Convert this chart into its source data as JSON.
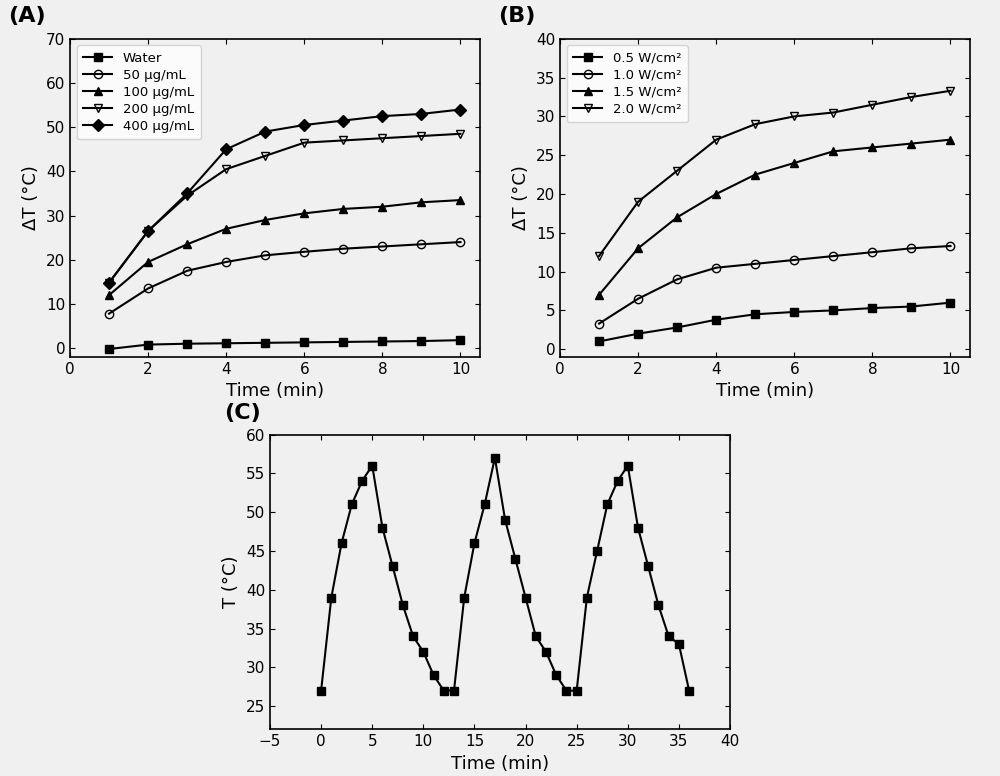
{
  "panel_A": {
    "xlabel": "Time (min)",
    "ylabel": "ΔT (°C)",
    "xlim": [
      0,
      10.5
    ],
    "ylim": [
      -2,
      70
    ],
    "xticks": [
      0,
      2,
      4,
      6,
      8,
      10
    ],
    "yticks": [
      0,
      10,
      20,
      30,
      40,
      50,
      60,
      70
    ],
    "time": [
      1,
      2,
      3,
      4,
      5,
      6,
      7,
      8,
      9,
      10
    ],
    "series": [
      {
        "label": "Water",
        "marker": "s",
        "fillstyle": "full",
        "values": [
          -0.2,
          0.8,
          1.0,
          1.1,
          1.2,
          1.3,
          1.4,
          1.5,
          1.6,
          1.8
        ]
      },
      {
        "label": "50 μg/mL",
        "marker": "o",
        "fillstyle": "none",
        "values": [
          7.8,
          13.5,
          17.5,
          19.5,
          21.0,
          21.8,
          22.5,
          23.0,
          23.5,
          24.0
        ]
      },
      {
        "label": "100 μg/mL",
        "marker": "^",
        "fillstyle": "full",
        "values": [
          12.0,
          19.5,
          23.5,
          27.0,
          29.0,
          30.5,
          31.5,
          32.0,
          33.0,
          33.5
        ]
      },
      {
        "label": "200 μg/mL",
        "marker": "v",
        "fillstyle": "none",
        "values": [
          14.8,
          26.5,
          34.5,
          40.5,
          43.5,
          46.5,
          47.0,
          47.5,
          48.0,
          48.5
        ]
      },
      {
        "label": "400 μg/mL",
        "marker": "D",
        "fillstyle": "full",
        "values": [
          14.8,
          26.5,
          35.0,
          45.0,
          49.0,
          50.5,
          51.5,
          52.5,
          53.0,
          54.0
        ]
      }
    ]
  },
  "panel_B": {
    "xlabel": "Time (min)",
    "ylabel": "ΔT (°C)",
    "xlim": [
      0,
      10.5
    ],
    "ylim": [
      -1,
      40
    ],
    "xticks": [
      0,
      2,
      4,
      6,
      8,
      10
    ],
    "yticks": [
      0,
      5,
      10,
      15,
      20,
      25,
      30,
      35,
      40
    ],
    "time": [
      1,
      2,
      3,
      4,
      5,
      6,
      7,
      8,
      9,
      10
    ],
    "series": [
      {
        "label": "0.5 W/cm²",
        "marker": "s",
        "fillstyle": "full",
        "values": [
          1.0,
          2.0,
          2.8,
          3.8,
          4.5,
          4.8,
          5.0,
          5.3,
          5.5,
          6.0
        ]
      },
      {
        "label": "1.0 W/cm²",
        "marker": "o",
        "fillstyle": "none",
        "values": [
          3.3,
          6.5,
          9.0,
          10.5,
          11.0,
          11.5,
          12.0,
          12.5,
          13.0,
          13.3
        ]
      },
      {
        "label": "1.5 W/cm²",
        "marker": "^",
        "fillstyle": "full",
        "values": [
          7.0,
          13.0,
          17.0,
          20.0,
          22.5,
          24.0,
          25.5,
          26.0,
          26.5,
          27.0
        ]
      },
      {
        "label": "2.0 W/cm²",
        "marker": "v",
        "fillstyle": "none",
        "values": [
          12.0,
          19.0,
          23.0,
          27.0,
          29.0,
          30.0,
          30.5,
          31.5,
          32.5,
          33.3
        ]
      }
    ]
  },
  "panel_C": {
    "xlabel": "Time (min)",
    "ylabel": "T (°C)",
    "xlim": [
      -5,
      40
    ],
    "ylim": [
      22,
      60
    ],
    "xticks": [
      -5,
      0,
      5,
      10,
      15,
      20,
      25,
      30,
      35,
      40
    ],
    "yticks": [
      25,
      30,
      35,
      40,
      45,
      50,
      55,
      60
    ],
    "time": [
      0,
      1,
      2,
      3,
      4,
      5,
      6,
      7,
      8,
      9,
      10,
      11,
      12,
      13,
      14,
      15,
      16,
      17,
      18,
      19,
      20,
      21,
      22,
      23,
      24,
      25,
      26,
      27,
      28,
      29,
      30,
      31,
      32,
      33,
      34,
      35,
      36
    ],
    "values": [
      27,
      39,
      46,
      51,
      54,
      56,
      48,
      43,
      38,
      34,
      32,
      29,
      27,
      27,
      39,
      46,
      51,
      57,
      49,
      44,
      39,
      34,
      32,
      29,
      27,
      27,
      39,
      45,
      51,
      54,
      56,
      48,
      43,
      38,
      34,
      33,
      27
    ]
  },
  "bg_color": "#f0f0f0",
  "label_fontsize": 16,
  "tick_fontsize": 11,
  "axis_fontsize": 13
}
